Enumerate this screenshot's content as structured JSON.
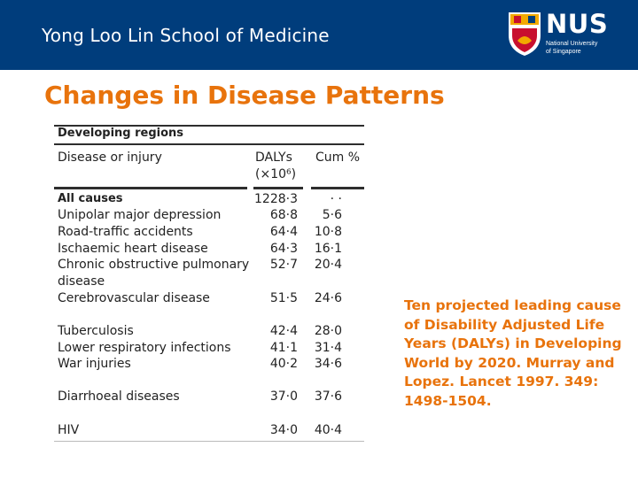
{
  "header": {
    "school_name": "Yong Loo Lin School of Medicine",
    "logo_name": "NUS",
    "logo_subtitle_1": "National University",
    "logo_subtitle_2": "of Singapore"
  },
  "slide": {
    "title": "Changes in Disease Patterns",
    "caption": "Ten projected leading cause of Disability Adjusted Life Years (DALYs) in Developing World by 2020. Murray and Lopez. Lancet 1997. 349: 1498-1504."
  },
  "table": {
    "section": "Developing regions",
    "col_disease": "Disease or injury",
    "col_dalys": "DALYs",
    "col_dalys_unit": "(×10⁶)",
    "col_cum": "Cum %",
    "rows": [
      {
        "disease": "All causes",
        "dalys": "1228·3",
        "cum": "· ·"
      },
      {
        "disease": "Unipolar major depression",
        "dalys": "68·8",
        "cum": "5·6"
      },
      {
        "disease": "Road-traffic accidents",
        "dalys": "64·4",
        "cum": "10·8"
      },
      {
        "disease": "Ischaemic heart disease",
        "dalys": "64·3",
        "cum": "16·1"
      },
      {
        "disease": "Chronic obstructive pulmonary",
        "disease2": "disease",
        "dalys": "52·7",
        "cum": "20·4"
      },
      {
        "disease": "Cerebrovascular disease",
        "dalys": "51·5",
        "cum": "24·6"
      },
      {
        "disease": "Tuberculosis",
        "dalys": "42·4",
        "cum": "28·0"
      },
      {
        "disease": "Lower respiratory infections",
        "dalys": "41·1",
        "cum": "31·4"
      },
      {
        "disease": "War injuries",
        "dalys": "40·2",
        "cum": "34·6"
      },
      {
        "disease": "Diarrhoeal diseases",
        "dalys": "37·0",
        "cum": "37·6"
      },
      {
        "disease": "HIV",
        "dalys": "34·0",
        "cum": "40·4"
      }
    ]
  },
  "colors": {
    "header_bg": "#003d7c",
    "accent": "#e8730c"
  }
}
